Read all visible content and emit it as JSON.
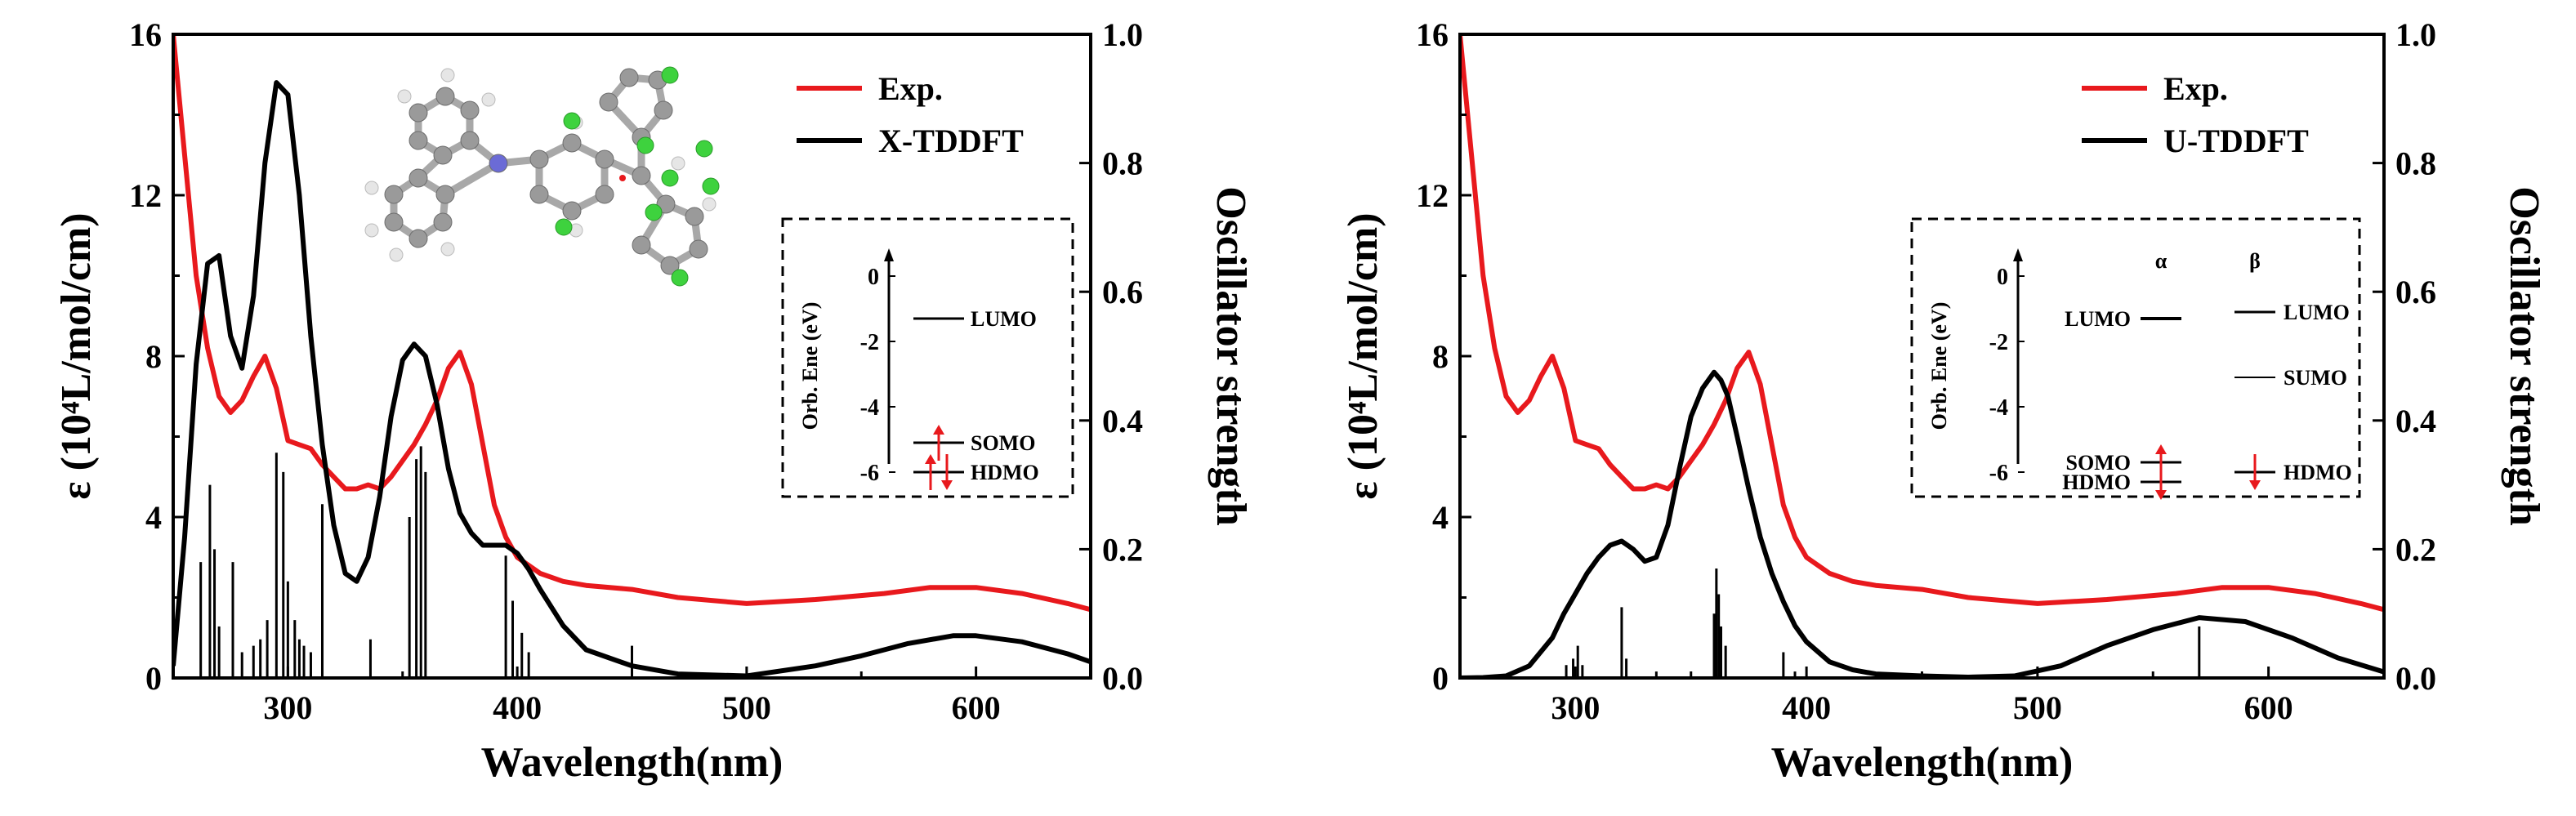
{
  "chart_data": [
    {
      "type": "line",
      "xlabel": "Wavelength(nm)",
      "ylabel": "ε (10⁴L/mol/cm)",
      "y2label": "Oscillator strength",
      "xlim": [
        250,
        650
      ],
      "ylim": [
        0,
        16
      ],
      "y2lim": [
        0,
        1.0
      ],
      "xticks": [
        "300",
        "400",
        "500",
        "600"
      ],
      "yticks": [
        "0",
        "4",
        "8",
        "12",
        "16"
      ],
      "y2ticks": [
        "0.0",
        "0.2",
        "0.4",
        "0.6",
        "0.8",
        "1.0"
      ],
      "legend_position": "top-right",
      "series": [
        {
          "name": "Exp.",
          "color": "#e8191d",
          "x": [
            250,
            255,
            260,
            265,
            270,
            275,
            280,
            285,
            290,
            295,
            300,
            305,
            310,
            315,
            320,
            325,
            330,
            335,
            340,
            345,
            350,
            355,
            360,
            365,
            370,
            375,
            380,
            385,
            390,
            395,
            400,
            410,
            420,
            430,
            450,
            470,
            500,
            530,
            560,
            580,
            600,
            620,
            640,
            650
          ],
          "values": [
            16,
            13.0,
            10.0,
            8.2,
            7.0,
            6.6,
            6.9,
            7.5,
            8.0,
            7.2,
            5.9,
            5.8,
            5.7,
            5.3,
            5.0,
            4.7,
            4.7,
            4.8,
            4.7,
            5.0,
            5.4,
            5.8,
            6.3,
            6.9,
            7.7,
            8.1,
            7.3,
            5.8,
            4.3,
            3.5,
            3.0,
            2.6,
            2.4,
            2.3,
            2.2,
            2.0,
            1.85,
            1.95,
            2.1,
            2.25,
            2.25,
            2.1,
            1.85,
            1.7
          ]
        },
        {
          "name": "X-TDDFT",
          "color": "#000000",
          "x": [
            250,
            255,
            260,
            265,
            270,
            275,
            280,
            285,
            290,
            295,
            300,
            305,
            310,
            315,
            320,
            325,
            330,
            335,
            340,
            345,
            350,
            355,
            360,
            365,
            370,
            375,
            380,
            385,
            390,
            395,
            400,
            405,
            410,
            420,
            430,
            450,
            470,
            500,
            530,
            550,
            570,
            590,
            600,
            620,
            640,
            650
          ],
          "values": [
            0.3,
            3.5,
            7.8,
            10.3,
            10.5,
            8.5,
            7.7,
            9.5,
            12.8,
            14.8,
            14.5,
            12.0,
            8.5,
            5.8,
            3.8,
            2.6,
            2.4,
            3.0,
            4.5,
            6.5,
            7.9,
            8.3,
            8.0,
            6.8,
            5.2,
            4.1,
            3.6,
            3.3,
            3.3,
            3.3,
            3.1,
            2.7,
            2.2,
            1.3,
            0.7,
            0.3,
            0.1,
            0.05,
            0.3,
            0.55,
            0.85,
            1.05,
            1.05,
            0.9,
            0.6,
            0.4
          ]
        }
      ],
      "sticks": {
        "x": [
          262,
          266,
          268,
          270,
          276,
          280,
          285,
          288,
          291,
          295,
          298,
          300,
          303,
          305,
          307,
          310,
          315,
          336,
          353,
          356,
          358,
          360,
          395,
          398,
          402,
          405,
          450
        ],
        "values": [
          0.18,
          0.3,
          0.2,
          0.08,
          0.18,
          0.04,
          0.05,
          0.06,
          0.09,
          0.35,
          0.32,
          0.15,
          0.09,
          0.06,
          0.05,
          0.04,
          0.27,
          0.06,
          0.25,
          0.34,
          0.36,
          0.32,
          0.19,
          0.12,
          0.07,
          0.04,
          0.05
        ]
      },
      "inset": {
        "ylabel": "Orb. Ene (eV)",
        "yticks": [
          "0",
          "-2",
          "-4",
          "-6"
        ],
        "levels": [
          {
            "label": "LUMO",
            "energy": -1.3
          },
          {
            "label": "SOMO",
            "energy": -5.1
          },
          {
            "label": "HDMO",
            "energy": -6.0
          }
        ]
      }
    },
    {
      "type": "line",
      "xlabel": "Wavelength(nm)",
      "ylabel": "ε (10⁴L/mol/cm)",
      "y2label": "Oscillator strength",
      "xlim": [
        250,
        650
      ],
      "ylim": [
        0,
        16
      ],
      "y2lim": [
        0,
        1.0
      ],
      "xticks": [
        "300",
        "400",
        "500",
        "600"
      ],
      "yticks": [
        "0",
        "4",
        "8",
        "12",
        "16"
      ],
      "y2ticks": [
        "0.0",
        "0.2",
        "0.4",
        "0.6",
        "0.8",
        "1.0"
      ],
      "legend_position": "top-right",
      "series": [
        {
          "name": "Exp.",
          "color": "#e8191d",
          "x": [
            250,
            255,
            260,
            265,
            270,
            275,
            280,
            285,
            290,
            295,
            300,
            305,
            310,
            315,
            320,
            325,
            330,
            335,
            340,
            345,
            350,
            355,
            360,
            365,
            370,
            375,
            380,
            385,
            390,
            395,
            400,
            410,
            420,
            430,
            450,
            470,
            500,
            530,
            560,
            580,
            600,
            620,
            640,
            650
          ],
          "values": [
            16,
            13.0,
            10.0,
            8.2,
            7.0,
            6.6,
            6.9,
            7.5,
            8.0,
            7.2,
            5.9,
            5.8,
            5.7,
            5.3,
            5.0,
            4.7,
            4.7,
            4.8,
            4.7,
            5.0,
            5.4,
            5.8,
            6.3,
            6.9,
            7.7,
            8.1,
            7.3,
            5.8,
            4.3,
            3.5,
            3.0,
            2.6,
            2.4,
            2.3,
            2.2,
            2.0,
            1.85,
            1.95,
            2.1,
            2.25,
            2.25,
            2.1,
            1.85,
            1.7
          ]
        },
        {
          "name": "U-TDDFT",
          "color": "#000000",
          "x": [
            250,
            260,
            270,
            280,
            290,
            295,
            300,
            305,
            310,
            315,
            320,
            325,
            330,
            335,
            340,
            345,
            350,
            355,
            360,
            363,
            366,
            370,
            375,
            380,
            385,
            390,
            395,
            400,
            410,
            420,
            430,
            450,
            470,
            490,
            510,
            530,
            550,
            570,
            590,
            610,
            630,
            650
          ],
          "values": [
            0,
            0.01,
            0.05,
            0.3,
            1.0,
            1.6,
            2.1,
            2.6,
            3.0,
            3.3,
            3.4,
            3.2,
            2.9,
            3.0,
            3.8,
            5.2,
            6.5,
            7.2,
            7.6,
            7.4,
            7.0,
            6.0,
            4.7,
            3.5,
            2.6,
            1.9,
            1.3,
            0.9,
            0.4,
            0.2,
            0.1,
            0.05,
            0.02,
            0.05,
            0.3,
            0.8,
            1.2,
            1.5,
            1.4,
            1.0,
            0.5,
            0.15
          ]
        }
      ],
      "sticks": {
        "x": [
          296,
          299,
          301,
          303,
          320,
          322,
          335,
          360,
          361,
          362,
          363,
          365,
          390,
          395,
          450,
          570
        ],
        "values": [
          0.02,
          0.03,
          0.05,
          0.02,
          0.11,
          0.03,
          0.01,
          0.1,
          0.17,
          0.13,
          0.08,
          0.05,
          0.04,
          0.01,
          0.005,
          0.08
        ]
      },
      "inset": {
        "ylabel": "Orb. Ene (eV)",
        "yticks": [
          "0",
          "-2",
          "-4",
          "-6"
        ],
        "alpha": "α",
        "beta": "β",
        "levels_alpha": [
          {
            "label": "LUMO",
            "energy": -1.3
          },
          {
            "label": "SOMO",
            "energy": -5.7
          },
          {
            "label": "HDMO",
            "energy": -6.3
          }
        ],
        "levels_beta": [
          {
            "label": "LUMO",
            "energy": -1.1
          },
          {
            "label": "SUMO",
            "energy": -3.1
          },
          {
            "label": "HDMO",
            "energy": -6.0
          }
        ]
      }
    }
  ],
  "colors": {
    "experimental": "#e8191d",
    "computed": "#000000",
    "electron_arrow": "#e8191d",
    "carbon": "#9a9a9a",
    "hydrogen": "#e6e6e6",
    "nitrogen": "#6b6bd6",
    "chlorine": "#3ed23e",
    "radical": "#e8191d"
  }
}
